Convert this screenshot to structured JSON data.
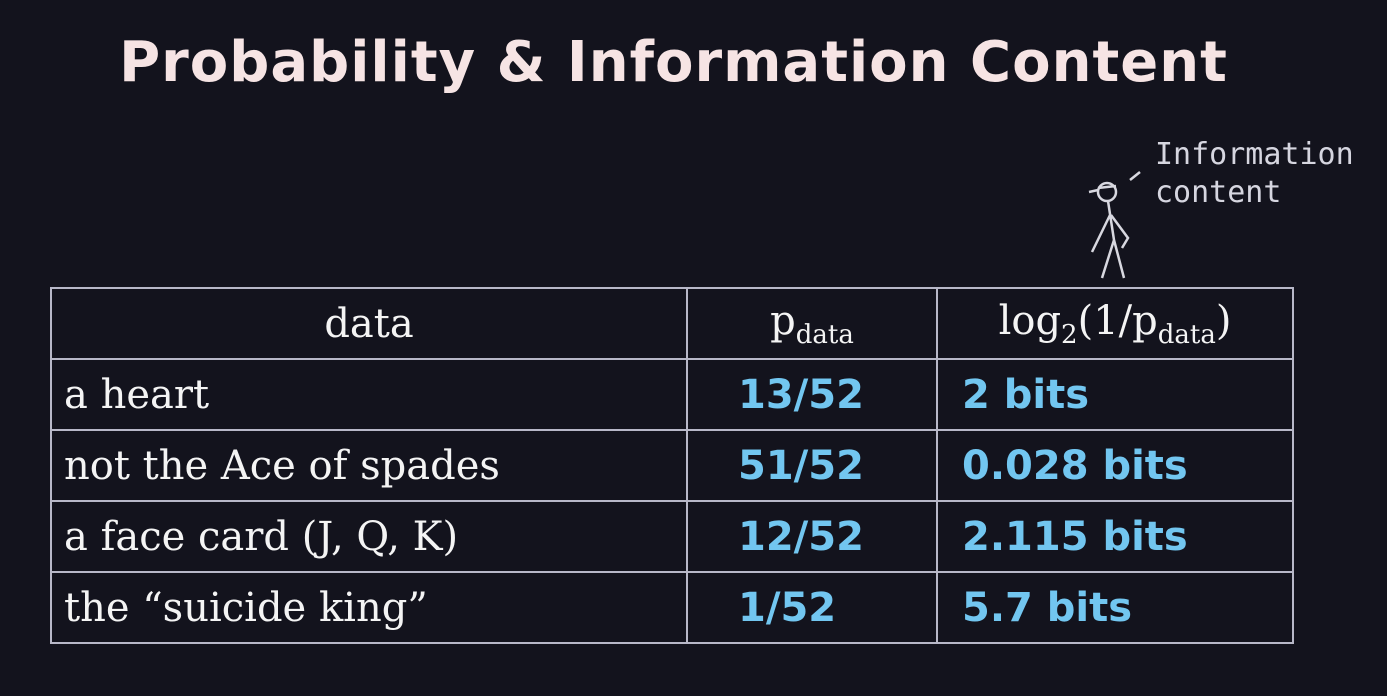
{
  "header": {
    "title": "Probability & Information Content"
  },
  "annotation": {
    "lines": [
      "Information",
      "content"
    ]
  },
  "table": {
    "header": [
      [
        {
          "text": "data"
        }
      ],
      [
        {
          "text": "p"
        },
        {
          "text": "data",
          "sub": true
        }
      ],
      [
        {
          "text": "log"
        },
        {
          "text": "2",
          "sub": true
        },
        {
          "text": "(1/p"
        },
        {
          "text": "data",
          "sub": true
        },
        {
          "text": ")"
        }
      ]
    ],
    "rows": [
      [
        "a heart",
        "13/52",
        "2 bits"
      ],
      [
        "not the Ace of spades",
        "51/52",
        "0.028 bits"
      ],
      [
        "a face card (J, Q, K)",
        "12/52",
        "2.115 bits"
      ],
      [
        "the “suicide king”",
        "1/52",
        "5.7 bits"
      ]
    ]
  }
}
